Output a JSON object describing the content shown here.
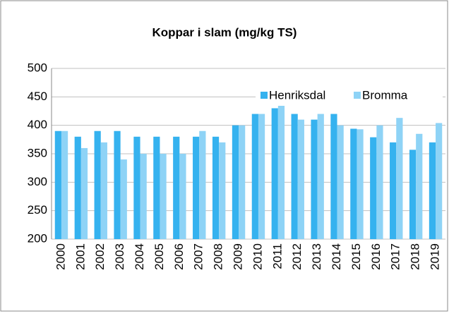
{
  "chart_data": {
    "type": "bar",
    "title": "Koppar i slam (mg/kg TS)",
    "categories": [
      "2000",
      "2001",
      "2002",
      "2003",
      "2004",
      "2005",
      "2006",
      "2007",
      "2008",
      "2009",
      "2010",
      "2011",
      "2012",
      "2013",
      "2014",
      "2015",
      "2016",
      "2017",
      "2018",
      "2019"
    ],
    "series": [
      {
        "name": "Henriksdal",
        "color": "#35b2ef",
        "values": [
          390,
          380,
          390,
          390,
          380,
          380,
          380,
          380,
          380,
          400,
          420,
          430,
          420,
          410,
          420,
          394,
          379,
          370,
          357,
          370
        ]
      },
      {
        "name": "Bromma",
        "color": "#8ed3f6",
        "values": [
          390,
          360,
          370,
          340,
          350,
          350,
          350,
          390,
          370,
          400,
          420,
          440,
          410,
          420,
          400,
          393,
          400,
          413,
          385,
          404
        ]
      }
    ],
    "ylim": [
      200,
      500
    ],
    "yticks": [
      200,
      250,
      300,
      350,
      400,
      450,
      500
    ],
    "grid": true,
    "legend": "top-right"
  }
}
